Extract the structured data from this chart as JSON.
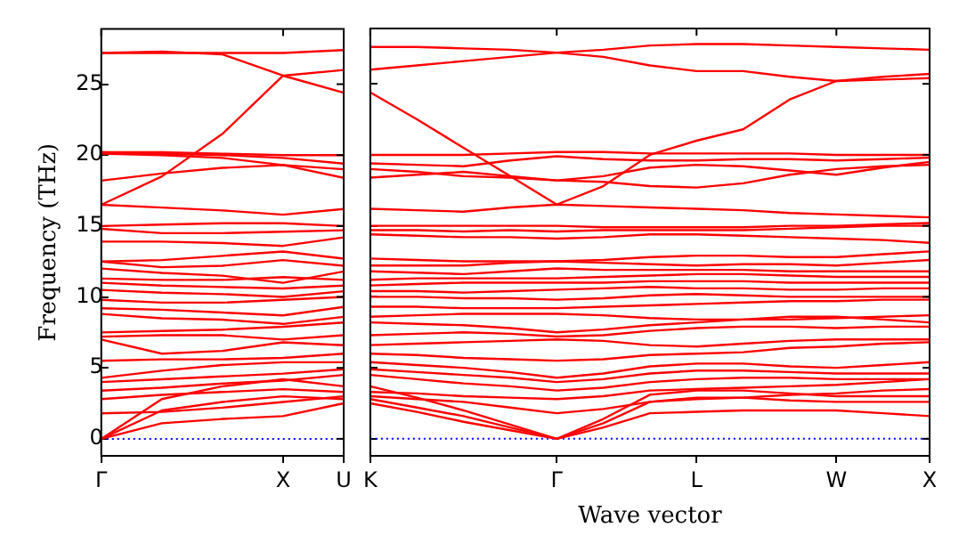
{
  "chart_data": [
    {
      "type": "line",
      "ylabel": "Frequency (THz)",
      "categories": [
        "Γ",
        null,
        null,
        "X",
        "U"
      ],
      "ylim": [
        -1.2,
        28.9
      ],
      "yticks": [
        0,
        5,
        10,
        15,
        20,
        25
      ],
      "grid": false,
      "legend": false,
      "marker": "none",
      "line_style": "solid",
      "ref_lines": [
        {
          "axis": "y",
          "value": 0,
          "color": "#0000ff",
          "line_style": "dotted"
        }
      ],
      "series": [
        {
          "color": "#ff0000",
          "values": [
            0,
            1.1,
            1.4,
            1.6,
            2.5
          ]
        },
        {
          "color": "#ff0000",
          "values": [
            0,
            2.0,
            2.6,
            3.0,
            2.8
          ]
        },
        {
          "color": "#ff0000",
          "values": [
            0,
            2.8,
            3.7,
            4.2,
            3.7
          ]
        },
        {
          "color": "#ff0000",
          "values": [
            1.8,
            1.9,
            2.2,
            2.6,
            3.0
          ]
        },
        {
          "color": "#ff0000",
          "values": [
            2.8,
            3.1,
            3.3,
            3.5,
            3.3
          ]
        },
        {
          "color": "#ff0000",
          "values": [
            3.4,
            3.6,
            3.9,
            4.1,
            4.5
          ]
        },
        {
          "color": "#ff0000",
          "values": [
            4.0,
            4.2,
            4.4,
            4.6,
            4.9
          ]
        },
        {
          "color": "#ff0000",
          "values": [
            4.3,
            4.8,
            5.2,
            5.4,
            5.4
          ]
        },
        {
          "color": "#ff0000",
          "values": [
            5.5,
            5.6,
            5.6,
            5.7,
            6.0
          ]
        },
        {
          "color": "#ff0000",
          "values": [
            7.0,
            6.0,
            6.2,
            6.8,
            6.6
          ]
        },
        {
          "color": "#ff0000",
          "values": [
            7.2,
            7.3,
            7.3,
            7.0,
            7.3
          ]
        },
        {
          "color": "#ff0000",
          "values": [
            7.5,
            7.6,
            7.7,
            7.9,
            8.2
          ]
        },
        {
          "color": "#ff0000",
          "values": [
            8.8,
            8.5,
            8.4,
            8.1,
            8.6
          ]
        },
        {
          "color": "#ff0000",
          "values": [
            9.2,
            9.1,
            8.9,
            8.7,
            9.3
          ]
        },
        {
          "color": "#ff0000",
          "values": [
            9.8,
            9.6,
            9.6,
            9.8,
            10.0
          ]
        },
        {
          "color": "#ff0000",
          "values": [
            10.5,
            10.3,
            10.2,
            10.0,
            10.4
          ]
        },
        {
          "color": "#ff0000",
          "values": [
            11.0,
            10.8,
            10.7,
            10.6,
            10.8
          ]
        },
        {
          "color": "#ff0000",
          "values": [
            11.3,
            11.2,
            11.2,
            11.4,
            11.2
          ]
        },
        {
          "color": "#ff0000",
          "values": [
            12.0,
            11.7,
            11.5,
            11.0,
            11.8
          ]
        },
        {
          "color": "#ff0000",
          "values": [
            12.5,
            12.1,
            12.2,
            12.6,
            12.2
          ]
        },
        {
          "color": "#ff0000",
          "values": [
            12.5,
            12.6,
            12.9,
            13.2,
            12.7
          ]
        },
        {
          "color": "#ff0000",
          "values": [
            13.9,
            13.9,
            13.8,
            13.6,
            14.2
          ]
        },
        {
          "color": "#ff0000",
          "values": [
            14.8,
            14.5,
            14.5,
            14.6,
            14.7
          ]
        },
        {
          "color": "#ff0000",
          "values": [
            15.0,
            15.1,
            15.2,
            15.2,
            15.0
          ]
        },
        {
          "color": "#ff0000",
          "values": [
            16.5,
            16.3,
            16.1,
            15.8,
            16.2
          ]
        },
        {
          "color": "#ff0000",
          "values": [
            16.5,
            18.5,
            21.5,
            25.6,
            26.0
          ]
        },
        {
          "color": "#ff0000",
          "values": [
            18.2,
            18.7,
            19.1,
            19.3,
            19.0
          ]
        },
        {
          "color": "#ff0000",
          "values": [
            20.1,
            20.0,
            19.8,
            19.3,
            18.4
          ]
        },
        {
          "color": "#ff0000",
          "values": [
            20.2,
            20.1,
            20.0,
            19.8,
            19.4
          ]
        },
        {
          "color": "#ff0000",
          "values": [
            20.2,
            20.2,
            20.1,
            20.0,
            20.0
          ]
        },
        {
          "color": "#ff0000",
          "values": [
            27.2,
            27.3,
            27.1,
            25.6,
            24.4
          ]
        },
        {
          "color": "#ff0000",
          "values": [
            27.2,
            27.2,
            27.2,
            27.2,
            27.4
          ]
        }
      ]
    },
    {
      "type": "line",
      "xlabel": "Wave vector",
      "categories": [
        "K",
        null,
        null,
        null,
        "Γ",
        null,
        null,
        "L",
        null,
        null,
        "W",
        null,
        "X"
      ],
      "ylim": [
        -1.2,
        28.9
      ],
      "yticks": [
        0,
        5,
        10,
        15,
        20,
        25
      ],
      "tick_labels": "x",
      "grid": false,
      "legend": false,
      "marker": "none",
      "line_style": "solid",
      "ref_lines": [
        {
          "axis": "y",
          "value": 0,
          "color": "#0000ff",
          "line_style": "dotted"
        }
      ],
      "series": [
        {
          "color": "#ff0000",
          "values": [
            2.5,
            1.9,
            1.2,
            0.6,
            0,
            0.8,
            1.8,
            1.9,
            2.0,
            2.0,
            2.0,
            1.8,
            1.6
          ]
        },
        {
          "color": "#ff0000",
          "values": [
            2.8,
            2.2,
            1.6,
            0.8,
            0,
            1.1,
            2.6,
            2.9,
            2.9,
            2.7,
            2.6,
            2.6,
            2.6
          ]
        },
        {
          "color": "#ff0000",
          "values": [
            3.7,
            2.9,
            2.0,
            1.0,
            0,
            1.4,
            3.1,
            3.4,
            3.4,
            3.2,
            3.0,
            3.0,
            3.0
          ]
        },
        {
          "color": "#ff0000",
          "values": [
            3.0,
            2.8,
            2.6,
            2.2,
            1.8,
            2.1,
            2.6,
            2.8,
            2.9,
            3.1,
            3.2,
            3.4,
            3.5
          ]
        },
        {
          "color": "#ff0000",
          "values": [
            3.3,
            3.2,
            3.0,
            2.9,
            2.8,
            3.0,
            3.4,
            3.5,
            3.6,
            3.7,
            3.8,
            4.0,
            4.2
          ]
        },
        {
          "color": "#ff0000",
          "values": [
            4.5,
            4.2,
            3.9,
            3.7,
            3.4,
            3.6,
            4.0,
            4.2,
            4.3,
            4.3,
            4.2,
            4.2,
            4.2
          ]
        },
        {
          "color": "#ff0000",
          "values": [
            4.9,
            4.7,
            4.5,
            4.3,
            4.0,
            4.2,
            4.6,
            4.8,
            4.8,
            4.7,
            4.6,
            4.6,
            4.6
          ]
        },
        {
          "color": "#ff0000",
          "values": [
            5.4,
            5.2,
            5.0,
            4.7,
            4.3,
            4.6,
            5.1,
            5.3,
            5.3,
            5.1,
            5.0,
            5.2,
            5.4
          ]
        },
        {
          "color": "#ff0000",
          "values": [
            6.0,
            5.9,
            5.7,
            5.6,
            5.5,
            5.6,
            5.9,
            6.0,
            6.1,
            6.4,
            6.5,
            6.7,
            6.8
          ]
        },
        {
          "color": "#ff0000",
          "values": [
            6.6,
            6.7,
            6.8,
            6.9,
            7.0,
            6.9,
            6.6,
            6.5,
            6.7,
            6.9,
            7.0,
            7.0,
            7.0
          ]
        },
        {
          "color": "#ff0000",
          "values": [
            7.3,
            7.4,
            7.5,
            7.4,
            7.2,
            7.3,
            7.6,
            7.8,
            7.9,
            7.9,
            7.8,
            7.9,
            7.9
          ]
        },
        {
          "color": "#ff0000",
          "values": [
            8.2,
            8.1,
            8.0,
            7.8,
            7.5,
            7.7,
            8.0,
            8.2,
            8.4,
            8.6,
            8.6,
            8.4,
            8.2
          ]
        },
        {
          "color": "#ff0000",
          "values": [
            8.6,
            8.7,
            8.8,
            8.8,
            8.8,
            8.7,
            8.5,
            8.4,
            8.4,
            8.4,
            8.5,
            8.6,
            8.7
          ]
        },
        {
          "color": "#ff0000",
          "values": [
            9.3,
            9.3,
            9.2,
            9.2,
            9.2,
            9.3,
            9.4,
            9.5,
            9.6,
            9.7,
            9.7,
            9.8,
            9.8
          ]
        },
        {
          "color": "#ff0000",
          "values": [
            10.0,
            10.0,
            9.9,
            9.9,
            9.8,
            9.9,
            10.1,
            10.2,
            10.1,
            10.0,
            10.0,
            10.0,
            10.0
          ]
        },
        {
          "color": "#ff0000",
          "values": [
            10.4,
            10.4,
            10.3,
            10.4,
            10.5,
            10.6,
            10.7,
            10.6,
            10.6,
            10.5,
            10.5,
            10.6,
            10.6
          ]
        },
        {
          "color": "#ff0000",
          "values": [
            10.8,
            10.9,
            11.0,
            11.0,
            11.0,
            11.0,
            11.1,
            11.1,
            11.1,
            11.0,
            11.0,
            11.0,
            11.0
          ]
        },
        {
          "color": "#ff0000",
          "values": [
            11.2,
            11.3,
            11.3,
            11.3,
            11.3,
            11.4,
            11.5,
            11.6,
            11.6,
            11.5,
            11.4,
            11.4,
            11.4
          ]
        },
        {
          "color": "#ff0000",
          "values": [
            11.8,
            11.7,
            11.6,
            11.8,
            12.0,
            11.9,
            11.9,
            11.9,
            11.9,
            11.8,
            11.8,
            11.8,
            11.8
          ]
        },
        {
          "color": "#ff0000",
          "values": [
            12.2,
            12.2,
            12.2,
            12.4,
            12.5,
            12.4,
            12.3,
            12.2,
            12.3,
            12.3,
            12.2,
            12.4,
            12.6
          ]
        },
        {
          "color": "#ff0000",
          "values": [
            12.7,
            12.6,
            12.5,
            12.5,
            12.5,
            12.6,
            12.8,
            12.9,
            12.9,
            12.8,
            12.8,
            13.0,
            13.2
          ]
        },
        {
          "color": "#ff0000",
          "values": [
            14.4,
            14.3,
            14.2,
            14.2,
            14.1,
            14.2,
            14.4,
            14.4,
            14.3,
            14.2,
            14.1,
            14.0,
            13.8
          ]
        },
        {
          "color": "#ff0000",
          "values": [
            14.7,
            14.7,
            14.6,
            14.7,
            14.6,
            14.7,
            14.7,
            14.7,
            14.7,
            14.8,
            14.9,
            15.0,
            15.0
          ]
        },
        {
          "color": "#ff0000",
          "values": [
            15.0,
            15.0,
            15.0,
            15.0,
            15.0,
            14.9,
            14.9,
            14.9,
            14.9,
            15.0,
            15.0,
            15.1,
            15.2
          ]
        },
        {
          "color": "#ff0000",
          "values": [
            16.2,
            16.1,
            16.0,
            16.3,
            16.5,
            16.4,
            16.3,
            16.2,
            16.1,
            15.9,
            15.8,
            15.7,
            15.6
          ]
        },
        {
          "color": "#ff0000",
          "values": [
            24.4,
            22.5,
            20.5,
            18.5,
            16.5,
            17.8,
            20.0,
            21.0,
            21.8,
            23.9,
            25.2,
            25.5,
            25.7
          ]
        },
        {
          "color": "#ff0000",
          "values": [
            19.0,
            18.8,
            18.5,
            18.4,
            18.2,
            18.1,
            17.8,
            17.7,
            18.0,
            18.6,
            19.0,
            19.2,
            19.3
          ]
        },
        {
          "color": "#ff0000",
          "values": [
            18.4,
            18.6,
            18.8,
            18.5,
            18.2,
            18.5,
            19.1,
            19.3,
            19.2,
            18.9,
            18.6,
            19.1,
            19.5
          ]
        },
        {
          "color": "#ff0000",
          "values": [
            19.4,
            19.3,
            19.2,
            19.6,
            19.9,
            19.7,
            19.6,
            19.6,
            19.7,
            19.7,
            19.6,
            19.7,
            19.8
          ]
        },
        {
          "color": "#ff0000",
          "values": [
            20.0,
            20.0,
            20.0,
            20.1,
            20.2,
            20.2,
            20.1,
            20.1,
            20.1,
            20.1,
            20.0,
            20.0,
            20.0
          ]
        },
        {
          "color": "#ff0000",
          "values": [
            26.0,
            26.3,
            26.6,
            26.9,
            27.2,
            27.4,
            27.7,
            27.8,
            27.8,
            27.7,
            27.6,
            27.5,
            27.4
          ]
        },
        {
          "color": "#ff0000",
          "values": [
            27.6,
            27.6,
            27.5,
            27.4,
            27.2,
            26.9,
            26.3,
            25.9,
            25.9,
            25.5,
            25.2,
            25.3,
            25.4
          ]
        }
      ]
    }
  ]
}
